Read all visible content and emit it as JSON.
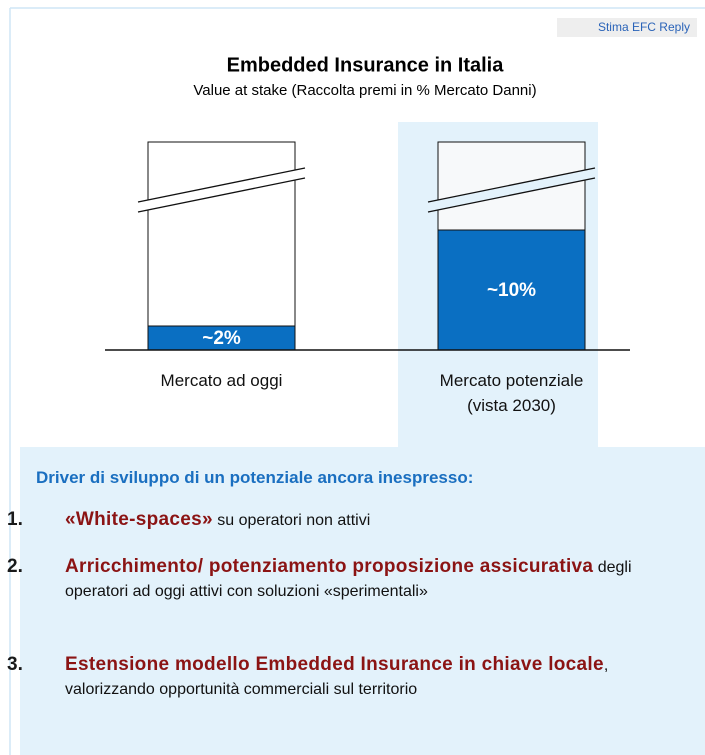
{
  "note": "Stima EFC Reply",
  "chart_data": {
    "type": "bar",
    "title": "Embedded Insurance in Italia",
    "subtitle": "Value at stake (Raccolta premi in % Mercato Danni)",
    "categories": [
      "Mercato ad oggi",
      "Mercato potenziale (vista 2030)"
    ],
    "values": [
      2,
      10
    ],
    "value_labels": [
      "~2%",
      "~10%"
    ],
    "color": "#0a6fc2"
  },
  "drivers": {
    "title": "Driver di sviluppo di un potenziale ancora inespresso:",
    "items": [
      {
        "number": "1.",
        "bold": "«White-spaces»",
        "text": " su operatori non attivi"
      },
      {
        "number": "2.",
        "bold": "Arricchimento/ potenziamento proposizione assicurativa",
        "text": " degli operatori ad oggi attivi con soluzioni «sperimentali»"
      },
      {
        "number": "3.",
        "bold": "Estensione modello Embedded Insurance in chiave locale",
        "text": ", valorizzando opportunità commerciali sul territorio"
      }
    ]
  }
}
